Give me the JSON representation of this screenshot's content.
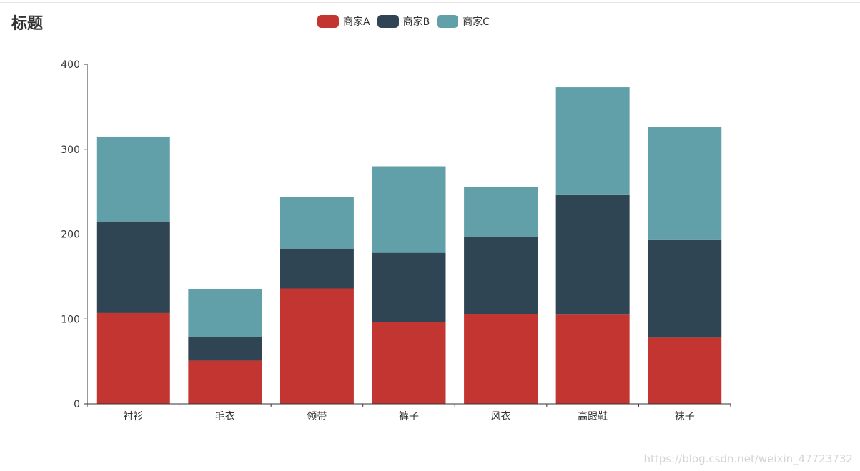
{
  "watermark": "https://blog.csdn.net/weixin_47723732",
  "chart_data": {
    "type": "bar",
    "stacked": true,
    "title": "标题",
    "categories": [
      "衬衫",
      "毛衣",
      "领带",
      "裤子",
      "风衣",
      "高跟鞋",
      "袜子"
    ],
    "series": [
      {
        "name": "商家A",
        "color": "#c23531",
        "values": [
          107,
          51,
          136,
          96,
          106,
          105,
          78
        ]
      },
      {
        "name": "商家B",
        "color": "#2f4554",
        "values": [
          108,
          28,
          47,
          82,
          91,
          141,
          115
        ]
      },
      {
        "name": "商家C",
        "color": "#61a0a8",
        "values": [
          100,
          56,
          61,
          102,
          59,
          127,
          133
        ]
      }
    ],
    "ylim": [
      0,
      400
    ],
    "yticks": [
      0,
      100,
      200,
      300,
      400
    ],
    "grid": false,
    "legend_position": "top-center"
  }
}
